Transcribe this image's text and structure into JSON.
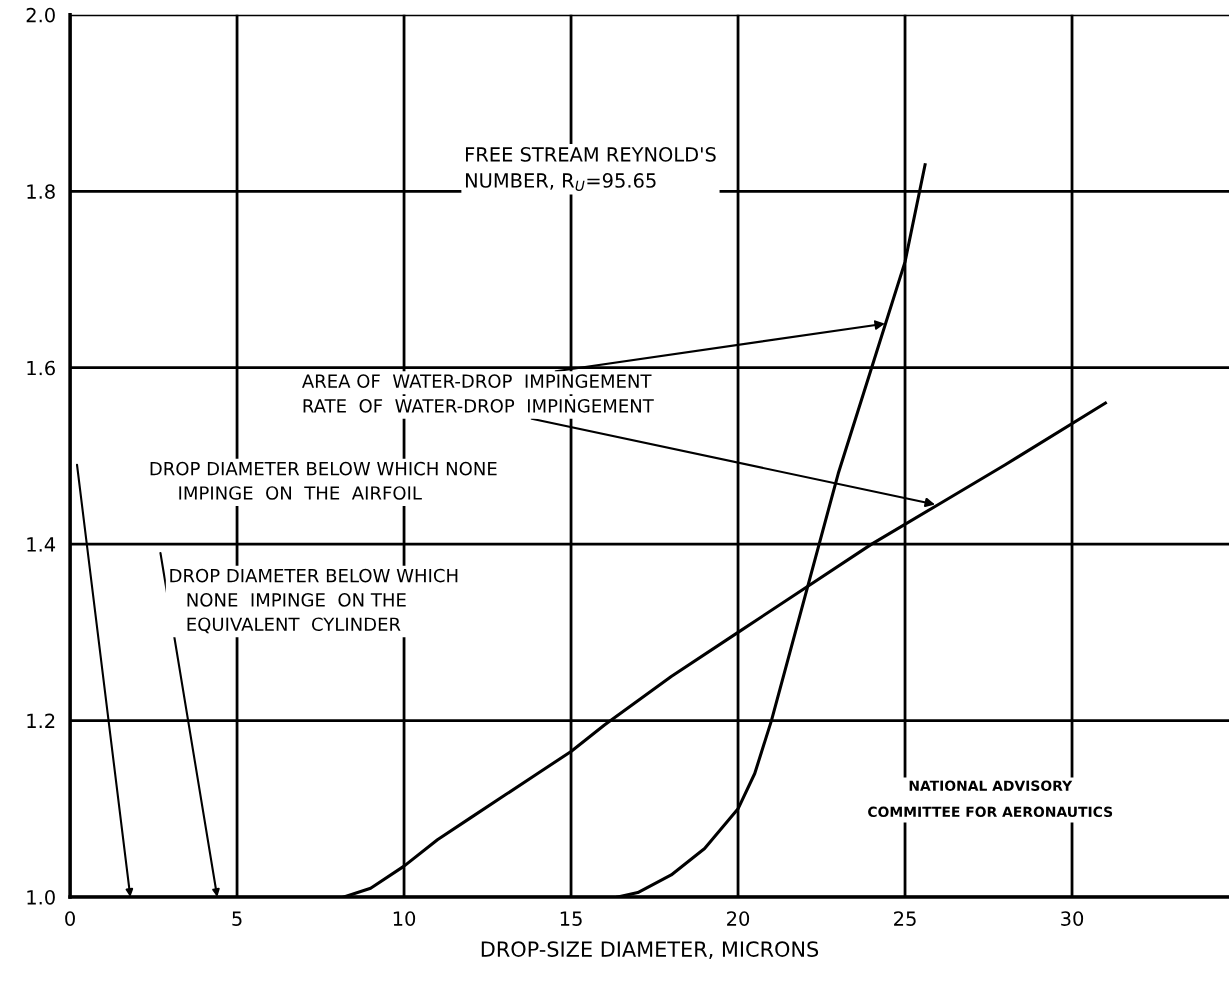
{
  "chart_data": {
    "type": "line",
    "xlabel": "DROP-SIZE DIAMETER, MICRONS",
    "series": [
      {
        "color": "#000000",
        "x": [
          8.2,
          9,
          10,
          11,
          12,
          13,
          14,
          15,
          16,
          18,
          20,
          22,
          24,
          26,
          28,
          31
        ],
        "values": [
          1.0,
          1.01,
          1.035,
          1.065,
          1.09,
          1.115,
          1.14,
          1.165,
          1.195,
          1.25,
          1.3,
          1.35,
          1.4,
          1.445,
          1.49,
          1.56
        ]
      },
      {
        "color": "#000000",
        "x": [
          16.4,
          17,
          18,
          19,
          20,
          20.5,
          21,
          21.5,
          22,
          23,
          24,
          25,
          25.6
        ],
        "values": [
          1.0,
          1.005,
          1.025,
          1.055,
          1.1,
          1.14,
          1.2,
          1.27,
          1.34,
          1.48,
          1.6,
          1.72,
          1.83
        ]
      }
    ],
    "xlim": [
      0,
      34.7
    ],
    "ylim": [
      1.0,
      2.0
    ],
    "xticks": [
      0,
      5,
      10,
      15,
      20,
      25,
      30
    ],
    "yticks": [
      {
        "value": 1.0,
        "label": "1.0"
      },
      1.2,
      1.4,
      1.6,
      1.8,
      {
        "value": 2.0,
        "label": "2.0"
      }
    ],
    "grid": true,
    "marker": "none",
    "line_style": "solid",
    "annotations": [
      "FREE STREAM REYNOLD'S\nNUMBER, R$_{U}$=95.65",
      {
        "text": "AREA OF  WATER-DROP  IMPINGEMENT",
        "x": 24.4,
        "y": 1.65
      },
      {
        "text": "RATE  OF  WATER-DROP  IMPINGEMENT",
        "x": 25.9,
        "y": 1.445
      },
      "DROP DIAMETER BELOW WHICH NONE\n     IMPINGE  ON  THE  AIRFOIL",
      "DROP DIAMETER BELOW WHICH\n   NONE  IMPINGE  ON THE\n   EQUIVALENT  CYLINDER",
      "NATIONAL ADVISORY\nCOMMITTEE FOR AERONAUTICS"
    ]
  }
}
